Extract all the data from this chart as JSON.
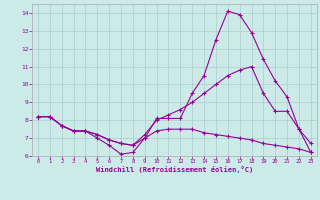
{
  "xlabel": "Windchill (Refroidissement éolien,°C)",
  "background_color": "#cceae8",
  "grid_color": "#aacccc",
  "line_color": "#990099",
  "xlim": [
    -0.5,
    23.5
  ],
  "ylim": [
    6,
    14.5
  ],
  "yticks": [
    6,
    7,
    8,
    9,
    10,
    11,
    12,
    13,
    14
  ],
  "xticks": [
    0,
    1,
    2,
    3,
    4,
    5,
    6,
    7,
    8,
    9,
    10,
    11,
    12,
    13,
    14,
    15,
    16,
    17,
    18,
    19,
    20,
    21,
    22,
    23
  ],
  "line1_x": [
    0,
    1,
    2,
    3,
    4,
    5,
    6,
    7,
    8,
    9,
    10,
    11,
    12,
    13,
    14,
    15,
    16,
    17,
    18,
    19,
    20,
    21,
    22,
    23
  ],
  "line1_y": [
    8.2,
    8.2,
    7.7,
    7.4,
    7.4,
    7.0,
    6.6,
    6.1,
    6.2,
    7.0,
    8.1,
    8.1,
    8.1,
    9.5,
    10.5,
    12.5,
    14.1,
    13.9,
    12.9,
    11.4,
    10.2,
    9.3,
    7.5,
    6.7
  ],
  "line2_x": [
    0,
    1,
    2,
    3,
    4,
    5,
    6,
    7,
    8,
    9,
    10,
    11,
    12,
    13,
    14,
    15,
    16,
    17,
    18,
    19,
    20,
    21,
    22,
    23
  ],
  "line2_y": [
    8.2,
    8.2,
    7.7,
    7.4,
    7.4,
    7.2,
    6.9,
    6.7,
    6.6,
    7.2,
    8.0,
    8.3,
    8.6,
    9.0,
    9.5,
    10.0,
    10.5,
    10.8,
    11.0,
    9.5,
    8.5,
    8.5,
    7.5,
    6.2
  ],
  "line3_x": [
    0,
    1,
    2,
    3,
    4,
    5,
    6,
    7,
    8,
    9,
    10,
    11,
    12,
    13,
    14,
    15,
    16,
    17,
    18,
    19,
    20,
    21,
    22,
    23
  ],
  "line3_y": [
    8.2,
    8.2,
    7.7,
    7.4,
    7.4,
    7.2,
    6.9,
    6.7,
    6.6,
    7.0,
    7.4,
    7.5,
    7.5,
    7.5,
    7.3,
    7.2,
    7.1,
    7.0,
    6.9,
    6.7,
    6.6,
    6.5,
    6.4,
    6.2
  ]
}
